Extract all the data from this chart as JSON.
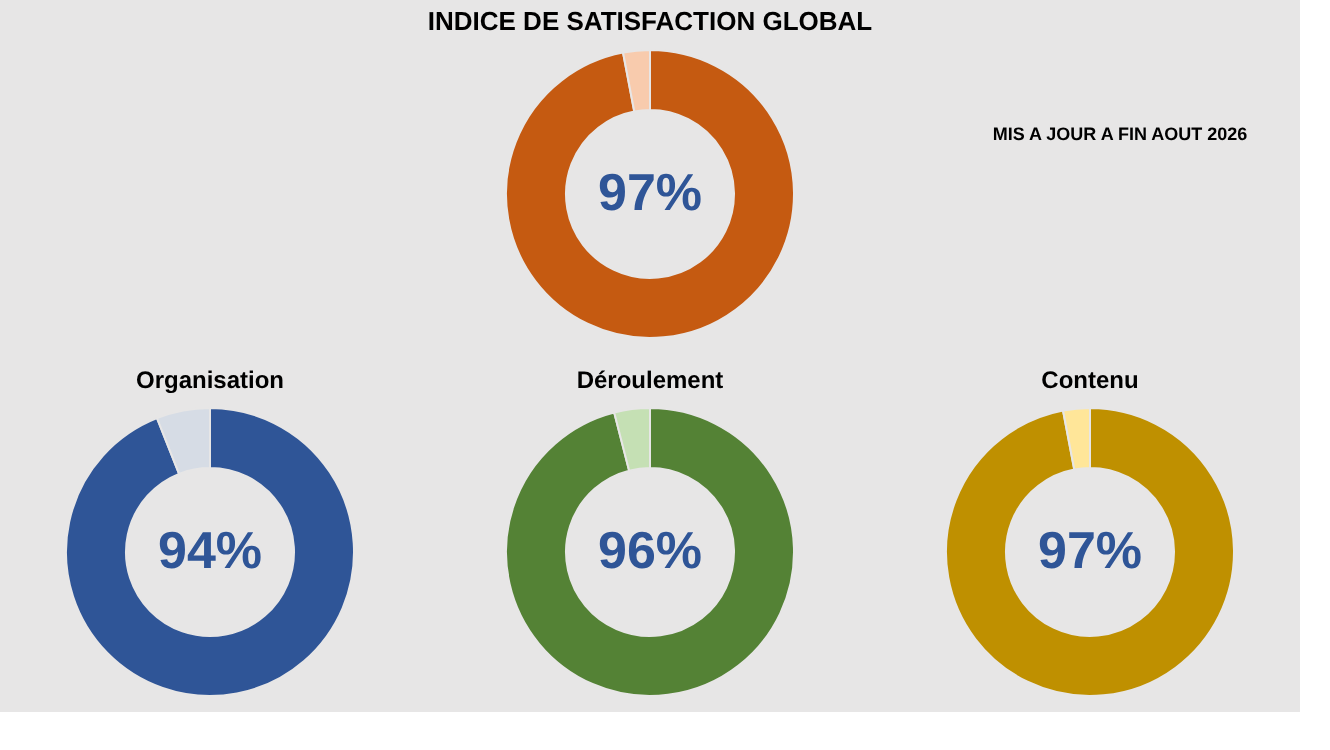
{
  "chart_data": [
    {
      "type": "donut",
      "title": "INDICE DE SATISFACTION GLOBAL",
      "categories": [
        null,
        null
      ],
      "values": [
        97,
        3
      ],
      "colors": [
        "#c55a11",
        "#f8cbad"
      ],
      "value_labels": [
        "97%",
        null
      ],
      "legend": false,
      "annotations": [
        "MIS A JOUR A FIN AOUT 2026"
      ]
    },
    {
      "type": "donut",
      "title": "Organisation",
      "categories": [
        null,
        null
      ],
      "values": [
        94,
        6
      ],
      "colors": [
        "#2f5597",
        "#d6dce5"
      ],
      "value_labels": [
        "94%",
        null
      ],
      "legend": false
    },
    {
      "type": "donut",
      "title": "Déroulement",
      "categories": [
        null,
        null
      ],
      "values": [
        96,
        4
      ],
      "colors": [
        "#548235",
        "#c5e0b4"
      ],
      "value_labels": [
        "96%",
        null
      ],
      "legend": false
    },
    {
      "type": "donut",
      "title": "Contenu",
      "categories": [
        null,
        null
      ],
      "values": [
        97,
        3
      ],
      "colors": [
        "#bf9000",
        "#ffe699"
      ],
      "value_labels": [
        "97%",
        null
      ],
      "legend": false
    }
  ]
}
